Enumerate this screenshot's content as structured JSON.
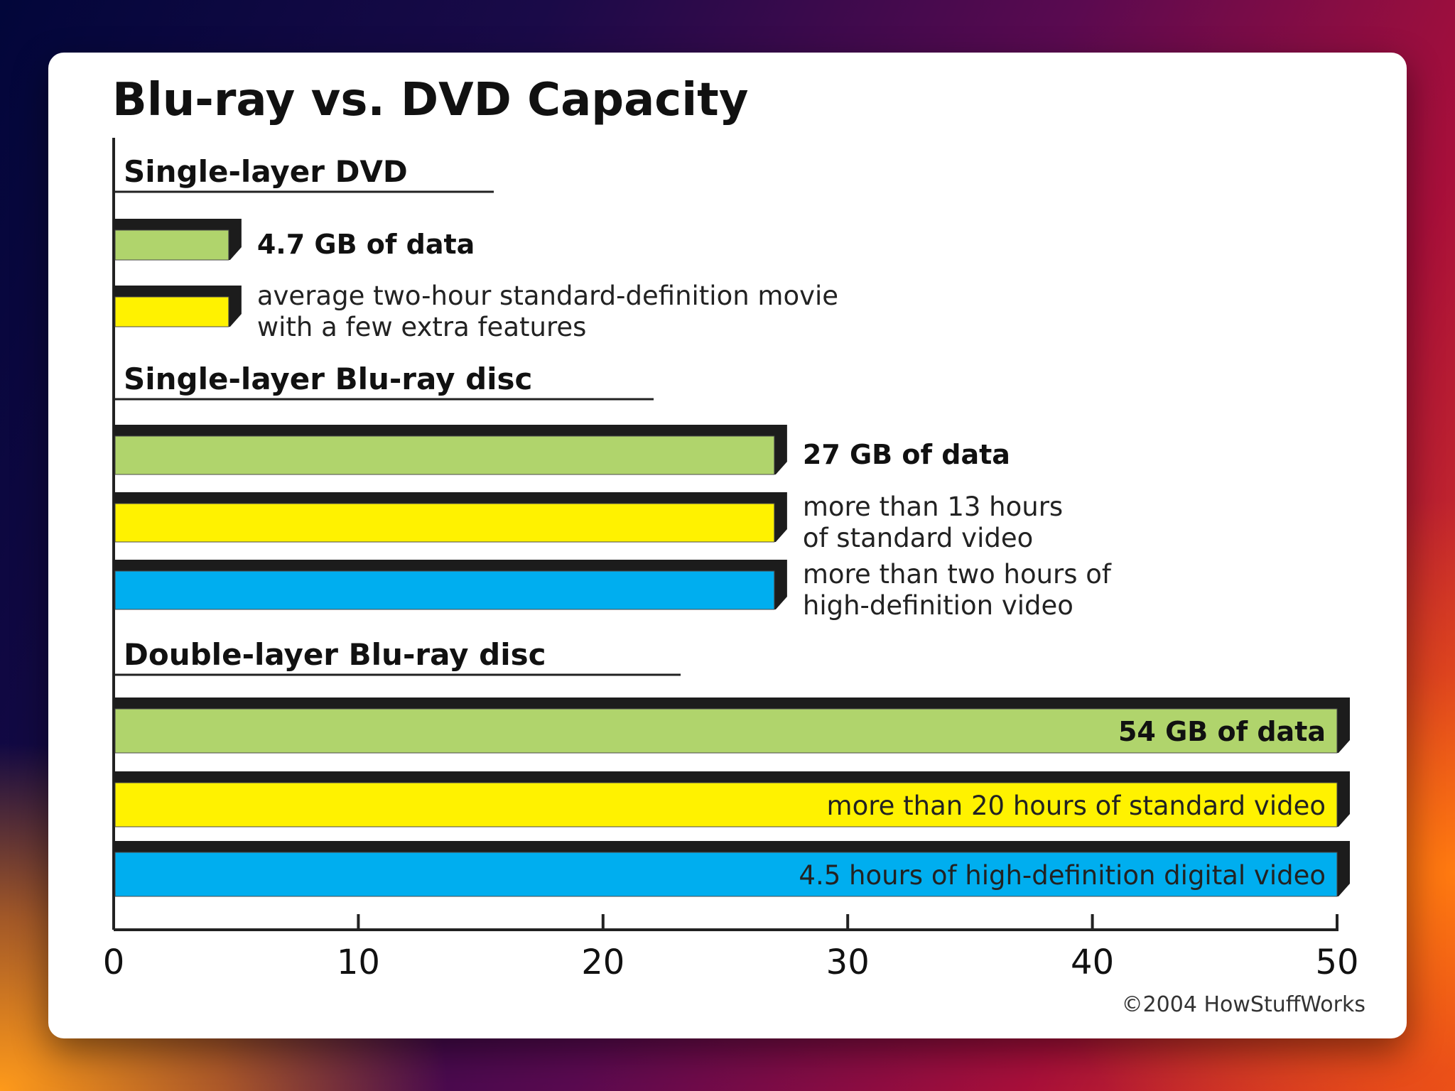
{
  "chart_data": {
    "type": "bar",
    "title": "Blu-ray vs. DVD Capacity",
    "xlim": [
      0,
      50
    ],
    "xticks": [
      0,
      10,
      20,
      30,
      40,
      50
    ],
    "grid": false,
    "groups": [
      {
        "name": "Single-layer DVD",
        "bars": [
          {
            "value": 4.7,
            "color": "#b0d46c",
            "label": "4.7 GB of data",
            "label_lines": [
              "4.7 GB of data"
            ],
            "label_style": "bold"
          },
          {
            "value": 4.7,
            "color": "#fff200",
            "label": "average two-hour standard-definition movie with a few extra features",
            "label_lines": [
              "average two-hour standard-definition movie",
              "with a few extra features"
            ],
            "label_style": "plain"
          }
        ]
      },
      {
        "name": "Single-layer Blu-ray disc",
        "bars": [
          {
            "value": 27,
            "color": "#b0d46c",
            "label": "27 GB of data",
            "label_lines": [
              "27 GB of data"
            ],
            "label_style": "bold"
          },
          {
            "value": 27,
            "color": "#fff200",
            "label": "more than 13 hours of standard video",
            "label_lines": [
              "more than 13 hours",
              "of standard video"
            ],
            "label_style": "plain"
          },
          {
            "value": 27,
            "color": "#00aeef",
            "label": "more than two hours of high-definition video",
            "label_lines": [
              "more than two hours of",
              "high-definition video"
            ],
            "label_style": "plain"
          }
        ]
      },
      {
        "name": "Double-layer Blu-ray disc",
        "bars": [
          {
            "value": 54,
            "color": "#b0d46c",
            "label": "54 GB of data",
            "label_lines": [
              "54 GB of data"
            ],
            "label_style": "bold"
          },
          {
            "value": 54,
            "color": "#fff200",
            "label": "more than 20 hours of standard video",
            "label_lines": [
              "more than 20 hours of standard video"
            ],
            "label_style": "plain"
          },
          {
            "value": 54,
            "color": "#00aeef",
            "label": "4.5 hours of high-definition digital video",
            "label_lines": [
              "4.5 hours of high-definition digital video"
            ],
            "label_style": "plain"
          }
        ]
      }
    ],
    "credit": "©2004 HowStuffWorks"
  }
}
